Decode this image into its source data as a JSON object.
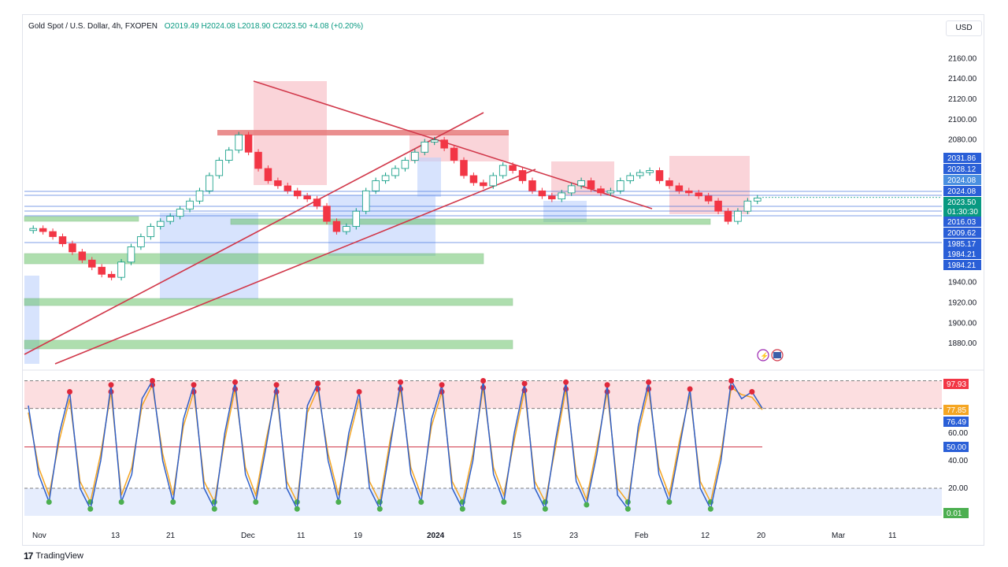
{
  "header": {
    "symbol": "Gold Spot / U.S. Dollar, 4h, FXOPEN",
    "ohlc": "O2019.49  H2024.08  L2018.90  C2023.50  +4.08 (+0.20%)"
  },
  "currency": "USD",
  "brand": "TradingView",
  "colors": {
    "up": "#089981",
    "down": "#f23645",
    "trend": "#d1384a",
    "blue": "#2962ff",
    "green_zone": "#5fbf60",
    "pink_zone": "#f7b7bf",
    "stoch_k": "#2f5fc8",
    "stoch_d": "#f5a623"
  },
  "chart_data": [
    {
      "type": "candlestick",
      "title": "",
      "ylim": [
        1860,
        2175
      ],
      "y_ticks": [
        "2160.00",
        "2140.00",
        "2120.00",
        "2100.00",
        "2080.00",
        "1940.00",
        "1920.00",
        "1900.00",
        "1880.00"
      ],
      "price_badges": [
        {
          "value": "2031.86",
          "color": "#2a5fd7"
        },
        {
          "value": "2028.12",
          "color": "#2a5fd7"
        },
        {
          "value": "2024.08",
          "color": "#4a8fe0"
        },
        {
          "value": "2024.08",
          "color": "#2a5fd7"
        },
        {
          "value": "2023.50",
          "color": "#089981"
        },
        {
          "value": "01:30:30",
          "color": "#089981"
        },
        {
          "value": "2016.03",
          "color": "#2a5fd7"
        },
        {
          "value": "2009.62",
          "color": "#2a5fd7"
        },
        {
          "value": "1985.17",
          "color": "#2a5fd7"
        },
        {
          "value": "1984.21",
          "color": "#2a5fd7"
        },
        {
          "value": "1984.21",
          "color": "#2a5fd7"
        }
      ],
      "x_ticks": [
        "Nov",
        "13",
        "21",
        "Dec",
        "11",
        "19",
        "2024",
        "15",
        "23",
        "Feb",
        "12",
        "20",
        "Mar",
        "11"
      ],
      "path_close": [
        1993,
        1990,
        1985,
        1978,
        1970,
        1962,
        1955,
        1948,
        1945,
        1960,
        1975,
        1985,
        1995,
        2000,
        2005,
        2012,
        2020,
        2030,
        2045,
        2060,
        2070,
        2085,
        2068,
        2052,
        2040,
        2035,
        2030,
        2025,
        2022,
        2015,
        2000,
        1990,
        1995,
        2010,
        2030,
        2040,
        2045,
        2052,
        2060,
        2068,
        2078,
        2080,
        2072,
        2060,
        2045,
        2038,
        2035,
        2045,
        2055,
        2050,
        2040,
        2030,
        2025,
        2022,
        2028,
        2035,
        2040,
        2032,
        2028,
        2030,
        2040,
        2045,
        2048,
        2050,
        2040,
        2035,
        2030,
        2028,
        2025,
        2020,
        2010,
        2000,
        2010,
        2020,
        2023
      ]
    },
    {
      "type": "line",
      "title": "",
      "ylim": [
        0,
        100
      ],
      "y_ticks": [
        "60.00",
        "40.00",
        "20.00"
      ],
      "levels": [
        {
          "value": "97.93",
          "color": "#f23645"
        },
        {
          "value": "77.85",
          "color": "#f5a623"
        },
        {
          "value": "76.49",
          "color": "#2a5fd7"
        },
        {
          "value": "50.00",
          "color": "#2a5fd7"
        },
        {
          "value": "0.01",
          "color": "#4caf50"
        }
      ],
      "series": [
        {
          "values": [
            80,
            30,
            10,
            60,
            90,
            20,
            5,
            40,
            95,
            10,
            30,
            85,
            98,
            40,
            10,
            70,
            95,
            20,
            5,
            60,
            97,
            30,
            10,
            50,
            95,
            20,
            5,
            80,
            96,
            40,
            10,
            60,
            90,
            20,
            5,
            50,
            97,
            30,
            10,
            70,
            95,
            20,
            5,
            40,
            98,
            30,
            10,
            60,
            96,
            20,
            5,
            55,
            97,
            25,
            8,
            45,
            95,
            15,
            5,
            65,
            97,
            30,
            10,
            50,
            92,
            20,
            5,
            40,
            98,
            85,
            90,
            78
          ]
        },
        {
          "values": [
            75,
            35,
            15,
            55,
            85,
            25,
            10,
            45,
            90,
            15,
            35,
            80,
            95,
            45,
            15,
            65,
            90,
            25,
            10,
            55,
            92,
            35,
            15,
            55,
            90,
            25,
            10,
            75,
            92,
            45,
            15,
            55,
            85,
            25,
            10,
            55,
            92,
            35,
            15,
            65,
            90,
            25,
            10,
            45,
            93,
            35,
            15,
            55,
            91,
            25,
            10,
            50,
            92,
            30,
            12,
            50,
            90,
            20,
            10,
            60,
            92,
            35,
            15,
            55,
            88,
            25,
            10,
            45,
            93,
            88,
            86,
            77
          ]
        }
      ]
    }
  ]
}
